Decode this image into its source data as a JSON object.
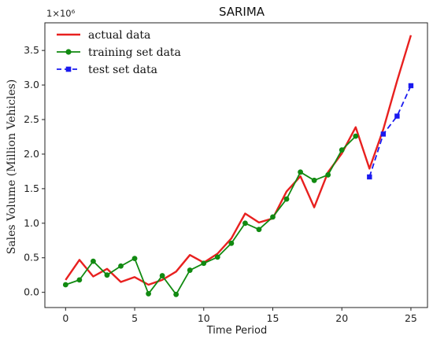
{
  "chart_data": {
    "type": "line",
    "title": "SARIMA",
    "xlabel": "Time Period",
    "ylabel": "Sales Volume (Million Vehicles)",
    "y_multiplier": "1×10⁶",
    "xlim": [
      -1.5,
      26.2
    ],
    "ylim": [
      -0.22,
      3.9
    ],
    "x_ticks": [
      0,
      5,
      10,
      15,
      20,
      25
    ],
    "y_ticks": [
      0.0,
      0.5,
      1.0,
      1.5,
      2.0,
      2.5,
      3.0,
      3.5
    ],
    "y_tick_labels": [
      "0.0",
      "0.5",
      "1.0",
      "1.5",
      "2.0",
      "2.5",
      "3.0",
      "3.5"
    ],
    "grid": false,
    "legend_position": "top-left",
    "series": [
      {
        "name": "actual data",
        "color": "#e8201f",
        "style": "solid",
        "marker": "none",
        "x": [
          0,
          1,
          2,
          3,
          4,
          5,
          6,
          7,
          8,
          9,
          10,
          11,
          12,
          13,
          14,
          15,
          16,
          17,
          18,
          19,
          20,
          21,
          22,
          23,
          24,
          25
        ],
        "y": [
          0.18,
          0.47,
          0.23,
          0.34,
          0.15,
          0.22,
          0.11,
          0.18,
          0.3,
          0.54,
          0.43,
          0.56,
          0.78,
          1.14,
          1.01,
          1.07,
          1.46,
          1.68,
          1.23,
          1.74,
          2.01,
          2.39,
          1.79,
          2.36,
          3.06,
          3.72
        ]
      },
      {
        "name": "training set data",
        "color": "#118a11",
        "style": "solid",
        "marker": "circle",
        "x": [
          0,
          1,
          2,
          3,
          4,
          5,
          6,
          7,
          8,
          9,
          10,
          11,
          12,
          13,
          14,
          15,
          16,
          17,
          18,
          19,
          20,
          21
        ],
        "y": [
          0.11,
          0.18,
          0.45,
          0.25,
          0.38,
          0.49,
          -0.02,
          0.24,
          -0.03,
          0.32,
          0.42,
          0.51,
          0.71,
          1.0,
          0.91,
          1.09,
          1.35,
          1.74,
          1.62,
          1.7,
          2.06,
          2.26
        ]
      },
      {
        "name": "test set data",
        "color": "#1a1aef",
        "style": "dashed",
        "marker": "square",
        "x": [
          22,
          23,
          24,
          25
        ],
        "y": [
          1.67,
          2.29,
          2.55,
          2.99
        ]
      }
    ]
  }
}
